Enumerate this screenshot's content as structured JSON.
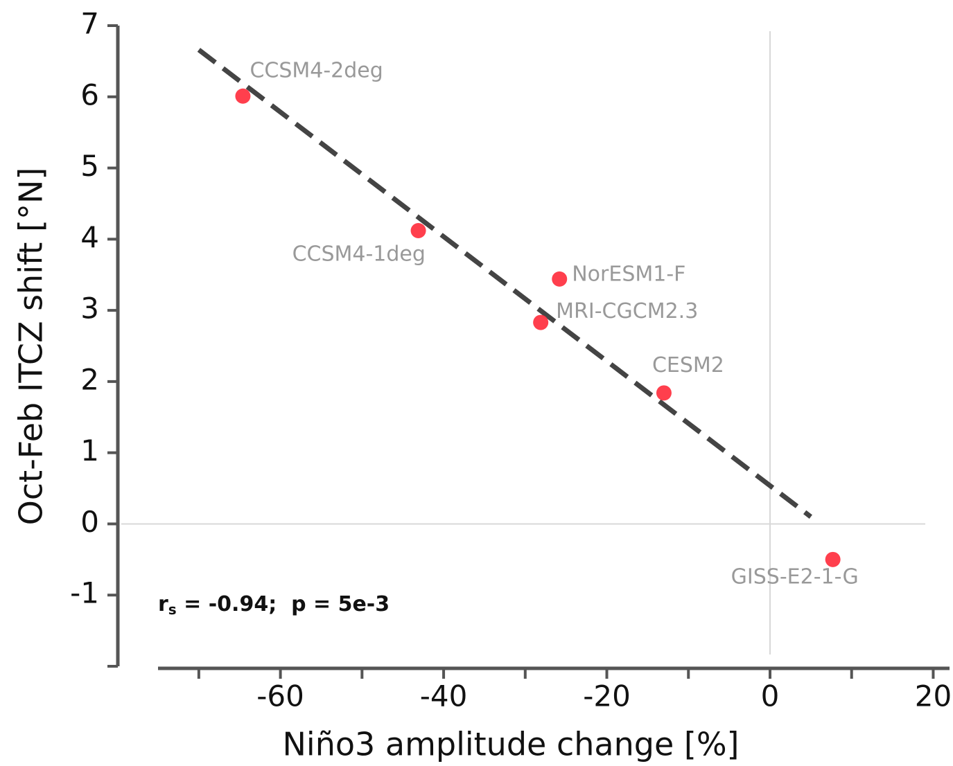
{
  "chart_data": {
    "type": "scatter",
    "xlabel": "Niño3 amplitude change [%]",
    "ylabel": "Oct-Feb ITCZ shift [°N]",
    "labels": [
      "CCSM4-2deg",
      "CCSM4-1deg",
      "NorESM1-F",
      "MRI-CGCM2.3",
      "CESM2",
      "GISS-E2-1-G"
    ],
    "x": [
      -64.6,
      -43.1,
      -25.8,
      -28.1,
      -13.0,
      7.7
    ],
    "y": [
      6.01,
      4.12,
      3.44,
      2.83,
      1.84,
      -0.5
    ],
    "color": "#ff2a3a",
    "label_color": "#999999",
    "fit_line": {
      "x": [
        -70,
        5
      ],
      "y": [
        6.66,
        0.1
      ],
      "color": "#444444"
    },
    "reference_lines": {
      "x": 0,
      "y": 0
    },
    "xlim": [
      -75,
      22
    ],
    "ylim": [
      -2,
      7
    ],
    "xticks": [
      -60,
      -40,
      -20,
      0,
      20
    ],
    "xminorticks": [
      -70,
      -50,
      -30,
      -10,
      10
    ],
    "yticks": [
      7,
      6,
      5,
      4,
      3,
      2,
      1,
      0,
      -1
    ],
    "yminorticks": [
      -2
    ],
    "annotation": {
      "symbol": "r",
      "subscript": "s",
      "text": " = -0.94;  p = 5e-3"
    }
  }
}
